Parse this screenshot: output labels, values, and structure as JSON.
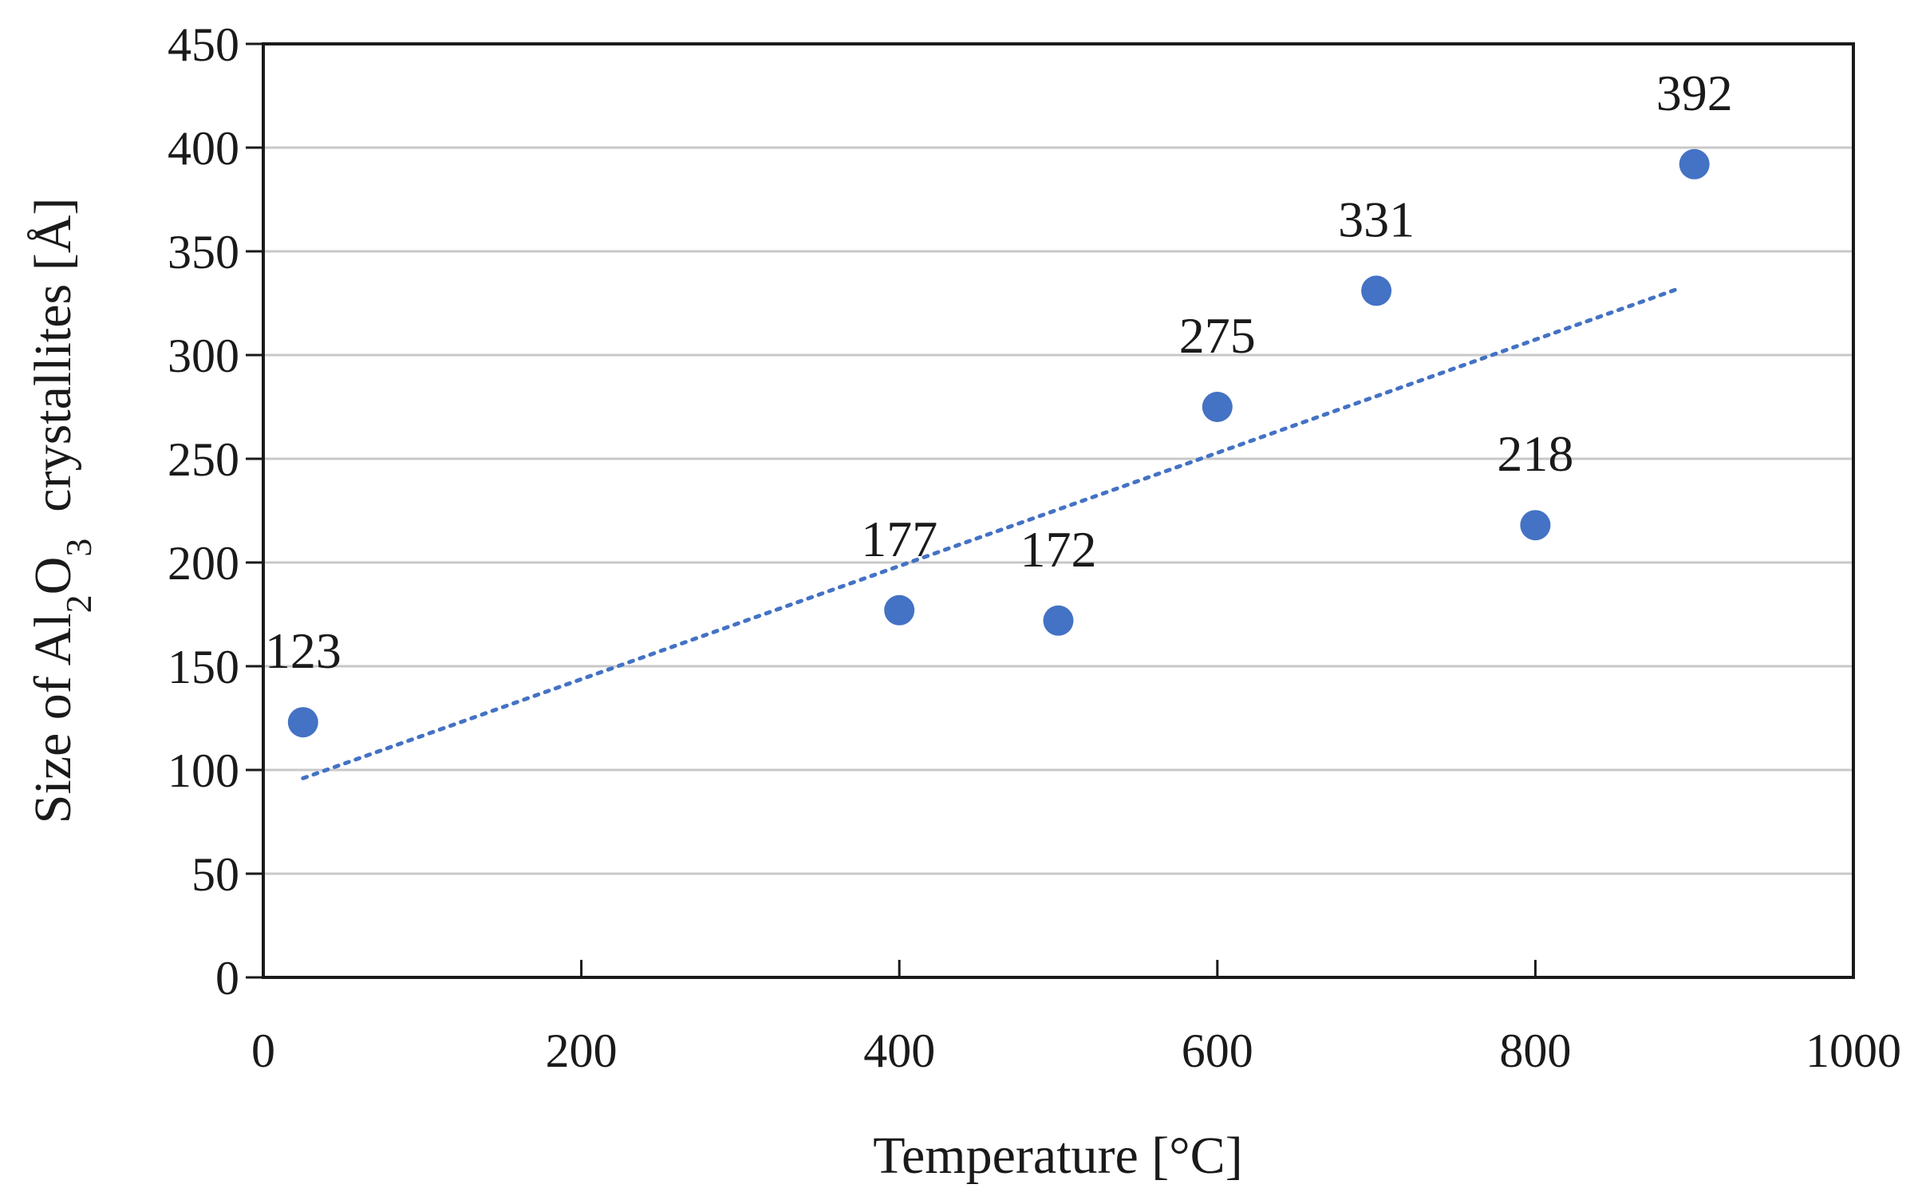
{
  "chart_data": {
    "type": "scatter",
    "title": "",
    "xlabel": "Temperature [°C]",
    "ylabel": {
      "prefix": "Size of Al",
      "sub1": "2",
      "mid": "O",
      "sub2": "3",
      "suffix": "  crystallites [Å]"
    },
    "xlim": [
      0,
      1000
    ],
    "ylim": [
      0,
      450
    ],
    "x_ticks": [
      0,
      200,
      400,
      600,
      800,
      1000
    ],
    "y_ticks": [
      0,
      50,
      100,
      150,
      200,
      250,
      300,
      350,
      400,
      450
    ],
    "grid": "horizontal",
    "series": [
      {
        "name": "Al2O3 crystallite size",
        "x": [
          25,
          400,
          500,
          600,
          700,
          800,
          900
        ],
        "y": [
          123,
          177,
          172,
          275,
          331,
          218,
          392
        ],
        "labels": [
          "123",
          "177",
          "172",
          "275",
          "331",
          "218",
          "392"
        ]
      }
    ],
    "trendline": {
      "type": "linear",
      "style": "dotted",
      "x": [
        25,
        890
      ],
      "y": [
        96,
        332
      ]
    },
    "colors": {
      "marker": "#4472c4",
      "trendline": "#4472c4",
      "grid": "#c8c8c8",
      "axis": "#1a1a1a"
    }
  }
}
